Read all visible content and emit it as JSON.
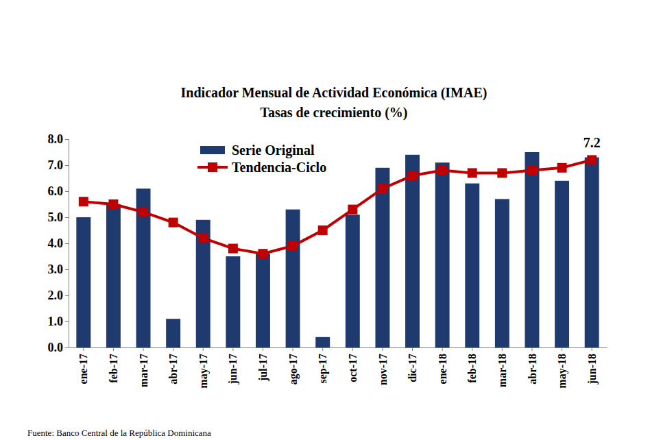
{
  "chart_data": {
    "type": "bar",
    "title": "Indicador Mensual de Actividad Económica (IMAE)",
    "subtitle": "Tasas de crecimiento (%)",
    "source": "Fuente: Banco Central de la República Dominicana",
    "categories": [
      "ene-17",
      "feb-17",
      "mar-17",
      "abr-17",
      "may-17",
      "jun-17",
      "jul-17",
      "ago-17",
      "sep-17",
      "oct-17",
      "nov-17",
      "dic-17",
      "ene-18",
      "feb-18",
      "mar-18",
      "abr-18",
      "may-18",
      "jun-18"
    ],
    "series": [
      {
        "name": "Serie Original",
        "type": "bar",
        "color": "#1f3a6e",
        "values": [
          5.0,
          5.5,
          6.1,
          1.1,
          4.9,
          3.5,
          3.6,
          5.3,
          0.4,
          5.1,
          6.9,
          7.4,
          7.1,
          6.3,
          5.7,
          7.5,
          6.4,
          7.3
        ]
      },
      {
        "name": "Tendencia-Ciclo",
        "type": "line",
        "color": "#c00000",
        "marker": "square",
        "line_style": "solid",
        "values": [
          5.6,
          5.5,
          5.2,
          4.8,
          4.2,
          3.8,
          3.6,
          3.9,
          4.5,
          5.3,
          6.1,
          6.6,
          6.8,
          6.7,
          6.7,
          6.8,
          6.9,
          7.2
        ]
      }
    ],
    "annotations": [
      {
        "category": "jun-18",
        "value": 7.2,
        "label": "7.2"
      }
    ],
    "ylim": [
      0,
      8
    ],
    "yticks": [
      {
        "value": 0,
        "label": "0.0"
      },
      {
        "value": 1,
        "label": "1.0"
      },
      {
        "value": 2,
        "label": "2.0"
      },
      {
        "value": 3,
        "label": "3.0"
      },
      {
        "value": 4,
        "label": "4.0"
      },
      {
        "value": 5,
        "label": "5.0"
      },
      {
        "value": 6,
        "label": "6.0"
      },
      {
        "value": 7,
        "label": "7.0"
      },
      {
        "value": 8,
        "label": "8.0"
      }
    ],
    "grid": false,
    "legend": "top-left"
  }
}
